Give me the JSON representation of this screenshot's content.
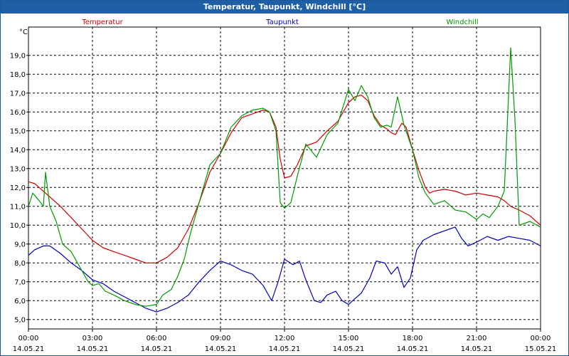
{
  "chart_data": {
    "type": "line",
    "title": "Temperatur, Taupunkt, Windchill [°C]",
    "ylabel": "°C",
    "ylim": [
      4.5,
      20.5
    ],
    "xlim": [
      0,
      24
    ],
    "y_ticks": [
      {
        "v": 5,
        "label": "5,0"
      },
      {
        "v": 6,
        "label": "6,0"
      },
      {
        "v": 7,
        "label": "7,0"
      },
      {
        "v": 8,
        "label": "8,0"
      },
      {
        "v": 9,
        "label": "9,0"
      },
      {
        "v": 10,
        "label": "10,0"
      },
      {
        "v": 11,
        "label": "11,0"
      },
      {
        "v": 12,
        "label": "12,0"
      },
      {
        "v": 13,
        "label": "13,0"
      },
      {
        "v": 14,
        "label": "14,0"
      },
      {
        "v": 15,
        "label": "15,0"
      },
      {
        "v": 16,
        "label": "16,0"
      },
      {
        "v": 17,
        "label": "17,0"
      },
      {
        "v": 18,
        "label": "18,0"
      },
      {
        "v": 19,
        "label": "19,0"
      }
    ],
    "x_ticks": [
      {
        "v": 0,
        "time": "00:00",
        "date": "14.05.21"
      },
      {
        "v": 3,
        "time": "03:00",
        "date": "14.05.21"
      },
      {
        "v": 6,
        "time": "06:00",
        "date": "14.05.21"
      },
      {
        "v": 9,
        "time": "09:00",
        "date": "14.05.21"
      },
      {
        "v": 12,
        "time": "12:00",
        "date": "14.05.21"
      },
      {
        "v": 15,
        "time": "15:00",
        "date": "14.05.21"
      },
      {
        "v": 18,
        "time": "18:00",
        "date": "14.05.21"
      },
      {
        "v": 21,
        "time": "21:00",
        "date": "14.05.21"
      },
      {
        "v": 24,
        "time": "00:00",
        "date": "15.05.21"
      }
    ],
    "series": [
      {
        "name": "Temperatur",
        "color": "#cc0000",
        "points": [
          [
            0,
            12.3
          ],
          [
            0.3,
            12.2
          ],
          [
            0.6,
            11.9
          ],
          [
            1,
            11.5
          ],
          [
            1.5,
            11
          ],
          [
            2,
            10.4
          ],
          [
            2.5,
            9.8
          ],
          [
            3,
            9.2
          ],
          [
            3.5,
            8.8
          ],
          [
            4,
            8.6
          ],
          [
            4.5,
            8.4
          ],
          [
            5,
            8.2
          ],
          [
            5.5,
            8.0
          ],
          [
            6,
            8.0
          ],
          [
            6.5,
            8.3
          ],
          [
            7,
            8.8
          ],
          [
            7.5,
            9.8
          ],
          [
            8,
            11.2
          ],
          [
            8.5,
            12.8
          ],
          [
            9,
            13.8
          ],
          [
            9.5,
            14.9
          ],
          [
            10,
            15.7
          ],
          [
            10.5,
            15.9
          ],
          [
            11,
            16.1
          ],
          [
            11.3,
            16.0
          ],
          [
            11.6,
            15.2
          ],
          [
            11.8,
            13.5
          ],
          [
            12,
            12.5
          ],
          [
            12.3,
            12.6
          ],
          [
            12.6,
            13.2
          ],
          [
            13,
            14.2
          ],
          [
            13.5,
            14.4
          ],
          [
            14,
            15.0
          ],
          [
            14.5,
            15.5
          ],
          [
            15,
            16.5
          ],
          [
            15.3,
            16.8
          ],
          [
            15.6,
            16.9
          ],
          [
            15.9,
            16.6
          ],
          [
            16.2,
            15.8
          ],
          [
            16.5,
            15.3
          ],
          [
            16.8,
            15.1
          ],
          [
            17,
            14.9
          ],
          [
            17.2,
            14.8
          ],
          [
            17.5,
            15.4
          ],
          [
            17.7,
            15.2
          ],
          [
            18,
            14.0
          ],
          [
            18.3,
            12.9
          ],
          [
            18.6,
            12.0
          ],
          [
            18.8,
            11.7
          ],
          [
            19,
            11.8
          ],
          [
            19.5,
            11.9
          ],
          [
            20,
            11.8
          ],
          [
            20.5,
            11.6
          ],
          [
            21,
            11.7
          ],
          [
            21.5,
            11.6
          ],
          [
            22,
            11.5
          ],
          [
            22.3,
            11.3
          ],
          [
            22.6,
            11.0
          ],
          [
            23,
            10.8
          ],
          [
            23.5,
            10.5
          ],
          [
            24,
            10.0
          ]
        ]
      },
      {
        "name": "Taupunkt",
        "color": "#0000bb",
        "points": [
          [
            0,
            8.4
          ],
          [
            0.3,
            8.7
          ],
          [
            0.7,
            8.9
          ],
          [
            1,
            8.9
          ],
          [
            1.5,
            8.5
          ],
          [
            2,
            8.0
          ],
          [
            2.5,
            7.6
          ],
          [
            3,
            7.1
          ],
          [
            3.5,
            6.9
          ],
          [
            4,
            6.5
          ],
          [
            4.5,
            6.2
          ],
          [
            5,
            5.9
          ],
          [
            5.5,
            5.6
          ],
          [
            6,
            5.4
          ],
          [
            6.5,
            5.6
          ],
          [
            7,
            5.9
          ],
          [
            7.5,
            6.3
          ],
          [
            8,
            7.0
          ],
          [
            8.5,
            7.6
          ],
          [
            9,
            8.1
          ],
          [
            9.5,
            7.9
          ],
          [
            10,
            7.6
          ],
          [
            10.5,
            7.4
          ],
          [
            11,
            6.8
          ],
          [
            11.4,
            6.0
          ],
          [
            11.7,
            7.0
          ],
          [
            12,
            8.2
          ],
          [
            12.4,
            7.9
          ],
          [
            12.7,
            8.1
          ],
          [
            13,
            7.1
          ],
          [
            13.4,
            6.0
          ],
          [
            13.7,
            5.9
          ],
          [
            14,
            6.3
          ],
          [
            14.4,
            6.5
          ],
          [
            14.7,
            6.0
          ],
          [
            15,
            5.8
          ],
          [
            15.3,
            6.1
          ],
          [
            15.6,
            6.4
          ],
          [
            16,
            7.2
          ],
          [
            16.3,
            8.1
          ],
          [
            16.7,
            8.0
          ],
          [
            17,
            7.4
          ],
          [
            17.3,
            7.8
          ],
          [
            17.6,
            6.7
          ],
          [
            17.9,
            7.2
          ],
          [
            18.2,
            8.7
          ],
          [
            18.5,
            9.2
          ],
          [
            19,
            9.5
          ],
          [
            19.5,
            9.7
          ],
          [
            20,
            9.9
          ],
          [
            20.3,
            9.3
          ],
          [
            20.6,
            8.9
          ],
          [
            21,
            9.1
          ],
          [
            21.5,
            9.4
          ],
          [
            22,
            9.2
          ],
          [
            22.5,
            9.4
          ],
          [
            23,
            9.3
          ],
          [
            23.5,
            9.2
          ],
          [
            24,
            8.9
          ]
        ]
      },
      {
        "name": "Windchill",
        "color": "#009900",
        "points": [
          [
            0,
            11.0
          ],
          [
            0.2,
            11.7
          ],
          [
            0.5,
            11.3
          ],
          [
            0.7,
            11.0
          ],
          [
            0.8,
            12.8
          ],
          [
            1,
            11.0
          ],
          [
            1.3,
            10.2
          ],
          [
            1.6,
            9.0
          ],
          [
            2,
            8.6
          ],
          [
            2.5,
            7.6
          ],
          [
            2.8,
            7.0
          ],
          [
            3,
            6.8
          ],
          [
            3.3,
            6.9
          ],
          [
            3.6,
            6.5
          ],
          [
            4,
            6.3
          ],
          [
            4.5,
            6.0
          ],
          [
            5,
            5.8
          ],
          [
            5.5,
            5.7
          ],
          [
            6,
            5.8
          ],
          [
            6.3,
            6.3
          ],
          [
            6.7,
            6.6
          ],
          [
            7,
            7.3
          ],
          [
            7.3,
            8.2
          ],
          [
            7.6,
            9.6
          ],
          [
            8,
            11.2
          ],
          [
            8.5,
            13.2
          ],
          [
            9,
            13.8
          ],
          [
            9.5,
            15.2
          ],
          [
            10,
            15.8
          ],
          [
            10.5,
            16.1
          ],
          [
            11,
            16.2
          ],
          [
            11.3,
            16.0
          ],
          [
            11.6,
            15.0
          ],
          [
            11.8,
            11.2
          ],
          [
            12,
            10.9
          ],
          [
            12.3,
            11.2
          ],
          [
            12.6,
            12.6
          ],
          [
            13,
            14.3
          ],
          [
            13.5,
            13.6
          ],
          [
            14,
            14.8
          ],
          [
            14.5,
            15.4
          ],
          [
            15,
            17.2
          ],
          [
            15.3,
            16.6
          ],
          [
            15.6,
            17.4
          ],
          [
            15.9,
            16.8
          ],
          [
            16.2,
            15.7
          ],
          [
            16.5,
            15.2
          ],
          [
            16.8,
            15.3
          ],
          [
            17,
            15.2
          ],
          [
            17.3,
            16.8
          ],
          [
            17.6,
            15.3
          ],
          [
            18,
            14.0
          ],
          [
            18.3,
            12.5
          ],
          [
            18.6,
            11.7
          ],
          [
            19,
            11.1
          ],
          [
            19.5,
            11.3
          ],
          [
            20,
            10.8
          ],
          [
            20.5,
            10.7
          ],
          [
            21,
            10.3
          ],
          [
            21.3,
            10.6
          ],
          [
            21.6,
            10.4
          ],
          [
            22,
            11.0
          ],
          [
            22.3,
            11.8
          ],
          [
            22.6,
            19.4
          ],
          [
            22.8,
            15.6
          ],
          [
            23,
            10.0
          ],
          [
            23.5,
            10.2
          ],
          [
            24,
            9.9
          ]
        ]
      }
    ]
  }
}
